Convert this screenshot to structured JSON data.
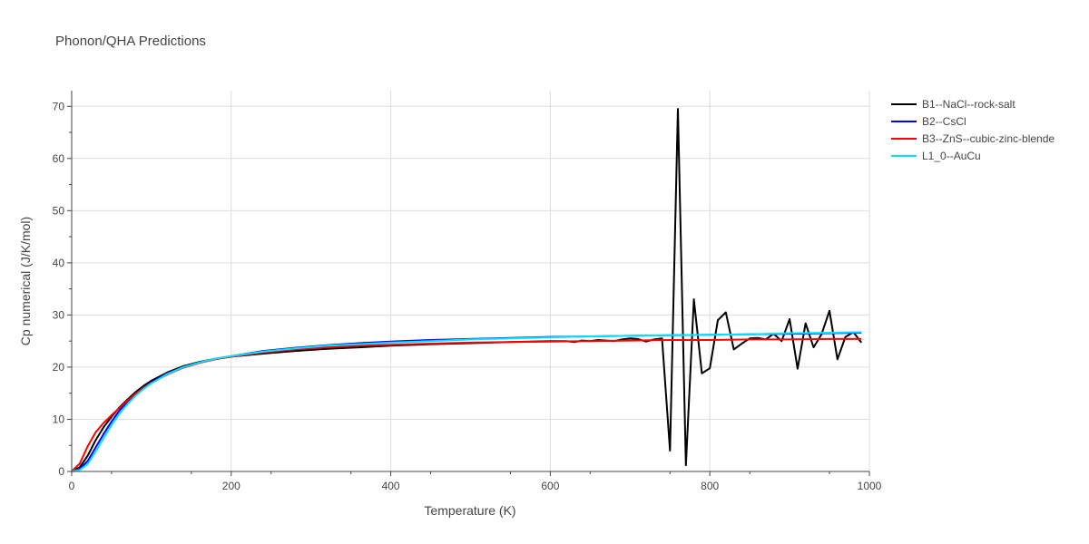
{
  "chart_data": {
    "type": "line",
    "title": "Phonon/QHA Predictions",
    "xlabel": "Temperature (K)",
    "ylabel": "Cp numerical (J/K/mol)",
    "xlim": [
      0,
      1000
    ],
    "ylim": [
      0,
      73
    ],
    "x_ticks": [
      0,
      200,
      400,
      600,
      800,
      1000
    ],
    "y_ticks": [
      0,
      10,
      20,
      30,
      40,
      50,
      60,
      70
    ],
    "grid": true,
    "legend_position": "right",
    "series": [
      {
        "name": "B1--NaCl--rock-salt",
        "color": "#000000",
        "x": [
          0,
          10,
          20,
          30,
          40,
          50,
          60,
          70,
          80,
          90,
          100,
          120,
          140,
          160,
          180,
          200,
          240,
          280,
          320,
          360,
          400,
          450,
          500,
          550,
          600,
          620,
          630,
          640,
          650,
          660,
          670,
          680,
          690,
          700,
          710,
          720,
          730,
          740,
          750,
          760,
          770,
          780,
          790,
          800,
          810,
          820,
          830,
          840,
          850,
          860,
          870,
          880,
          890,
          900,
          910,
          920,
          930,
          940,
          950,
          960,
          970,
          980,
          990
        ],
        "y": [
          0,
          0.8,
          3,
          6,
          8.5,
          10.5,
          12.3,
          13.8,
          15.2,
          16.4,
          17.4,
          19,
          20.2,
          21,
          21.6,
          22,
          22.6,
          23.1,
          23.5,
          23.8,
          24.1,
          24.4,
          24.6,
          24.8,
          25.0,
          25.0,
          24.8,
          25.1,
          25.0,
          25.2,
          25.1,
          25.0,
          25.3,
          25.5,
          25.4,
          24.9,
          25.3,
          25.5,
          4.0,
          69.5,
          1.2,
          33.0,
          18.8,
          19.8,
          29.0,
          30.5,
          23.4,
          24.5,
          25.5,
          25.6,
          25.3,
          26.4,
          25.0,
          29.2,
          19.7,
          28.4,
          23.8,
          26.3,
          30.8,
          21.5,
          25.8,
          26.7,
          24.7
        ]
      },
      {
        "name": "B2--CsCl",
        "color": "#0000ff",
        "x": [
          0,
          10,
          20,
          30,
          40,
          50,
          60,
          70,
          80,
          90,
          100,
          120,
          140,
          160,
          180,
          200,
          240,
          280,
          320,
          360,
          400,
          450,
          500,
          550,
          600,
          650,
          700,
          750,
          800,
          850,
          900,
          950,
          990
        ],
        "y": [
          0,
          0.5,
          2,
          4.6,
          7.2,
          9.6,
          11.7,
          13.4,
          14.9,
          16.1,
          17.1,
          18.8,
          20.0,
          20.9,
          21.6,
          22.1,
          23.1,
          23.7,
          24.2,
          24.6,
          24.9,
          25.2,
          25.4,
          25.6,
          25.8,
          25.9,
          26.0,
          26.1,
          26.2,
          26.3,
          26.4,
          26.5,
          26.6
        ]
      },
      {
        "name": "B3--ZnS--cubic-zinc-blende",
        "color": "#ff0000",
        "x": [
          0,
          10,
          20,
          30,
          40,
          50,
          60,
          70,
          80,
          90,
          100,
          120,
          140,
          160,
          180,
          200,
          240,
          280,
          320,
          360,
          400,
          450,
          500,
          550,
          600,
          650,
          700,
          750,
          800,
          850,
          900,
          950,
          990
        ],
        "y": [
          0,
          1.5,
          4.8,
          7.5,
          9.3,
          10.8,
          12.2,
          13.6,
          14.9,
          16.0,
          17.0,
          18.6,
          19.9,
          20.8,
          21.5,
          22.0,
          22.8,
          23.4,
          23.8,
          24.1,
          24.3,
          24.5,
          24.7,
          24.8,
          24.9,
          25.0,
          25.1,
          25.2,
          25.2,
          25.3,
          25.3,
          25.4,
          25.4
        ]
      },
      {
        "name": "L1_0--AuCu",
        "color": "#00e5ff",
        "x": [
          0,
          10,
          20,
          30,
          40,
          50,
          60,
          70,
          80,
          90,
          100,
          120,
          140,
          160,
          180,
          200,
          240,
          280,
          320,
          360,
          400,
          450,
          500,
          550,
          600,
          650,
          700,
          750,
          800,
          850,
          900,
          950,
          990
        ],
        "y": [
          0,
          0.3,
          1.4,
          3.8,
          6.4,
          8.9,
          11.1,
          12.9,
          14.5,
          15.8,
          16.9,
          18.7,
          20.0,
          20.9,
          21.6,
          22.1,
          23.0,
          23.6,
          24.1,
          24.4,
          24.7,
          25.0,
          25.3,
          25.5,
          25.7,
          25.9,
          26.0,
          26.1,
          26.2,
          26.3,
          26.5,
          26.6,
          26.7
        ]
      }
    ]
  }
}
